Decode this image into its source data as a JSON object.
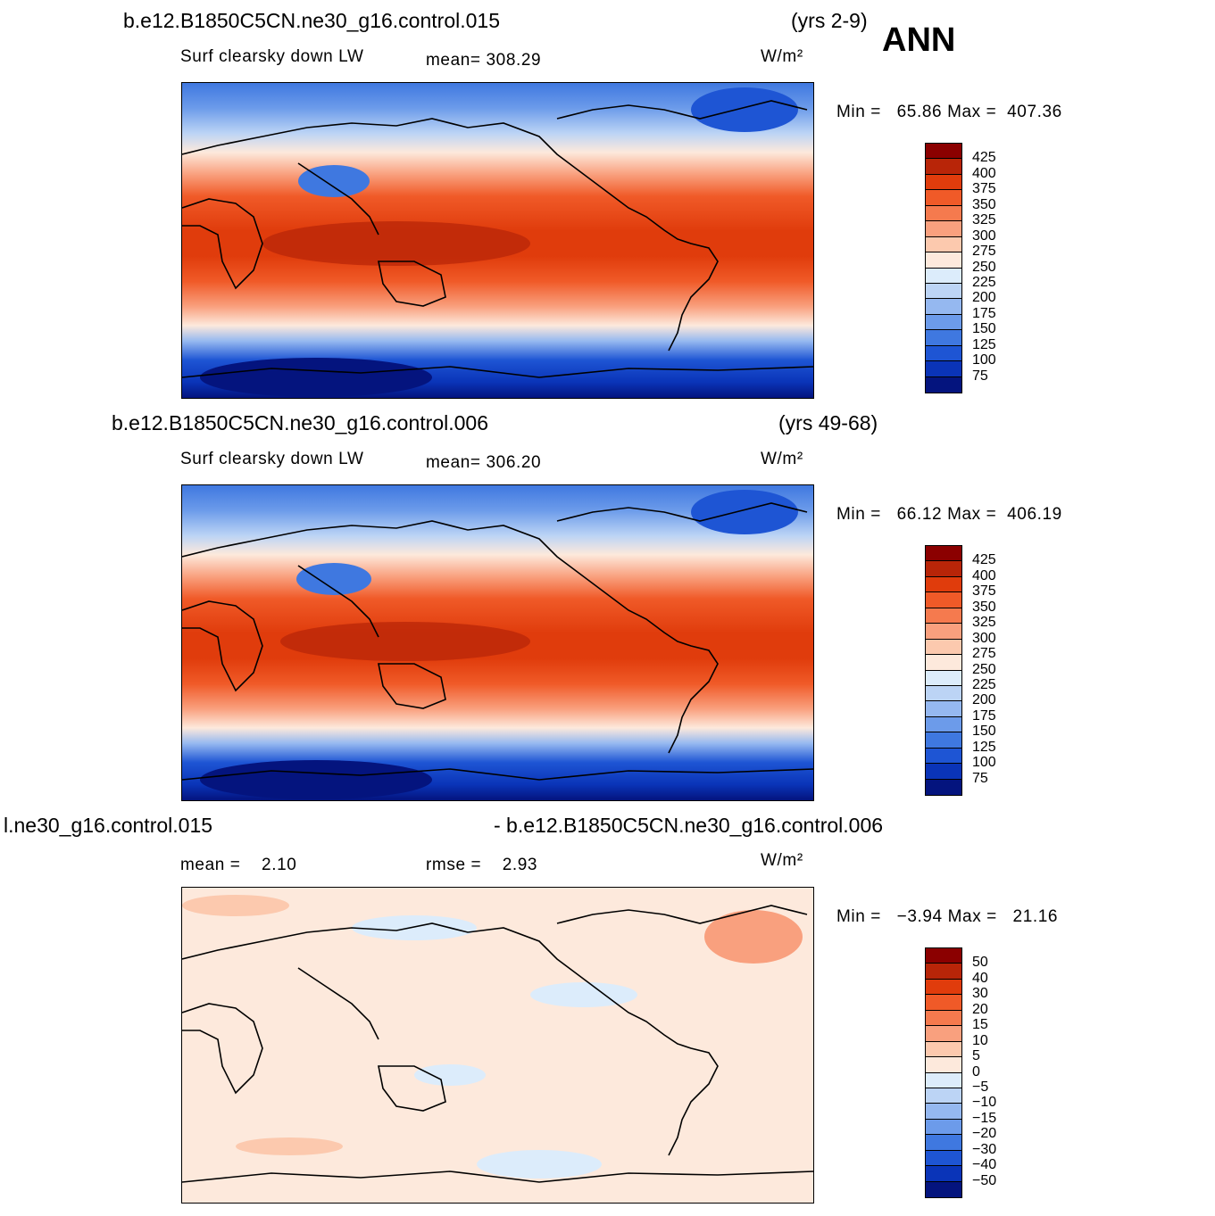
{
  "season": "ANN",
  "chart_data": [
    {
      "type": "heatmap",
      "title": "b.e12.B1850C5CN.ne30_g16.control.015",
      "years": "(yrs 2-9)",
      "variable": "Surf clearsky down LW",
      "stat_label": "mean=",
      "stat_value": "308.29",
      "units": "W/m²",
      "min_label": "Min =",
      "min": "65.86",
      "max_label": "Max =",
      "max": "407.36",
      "colorbar_levels": [
        "425",
        "400",
        "375",
        "350",
        "325",
        "300",
        "275",
        "250",
        "225",
        "200",
        "175",
        "150",
        "125",
        "100",
        "75"
      ],
      "colorbar_colors": [
        "#8b0000",
        "#b82508",
        "#e03c0c",
        "#f05a28",
        "#f57a4e",
        "#f9a07e",
        "#fcc9ae",
        "#fde9dc",
        "#dcecfb",
        "#bcd4f5",
        "#95b8f0",
        "#6c9bea",
        "#3f78e0",
        "#1e55d4",
        "#0a34b8",
        "#04147e"
      ]
    },
    {
      "type": "heatmap",
      "title": "b.e12.B1850C5CN.ne30_g16.control.006",
      "years": "(yrs 49-68)",
      "variable": "Surf clearsky down LW",
      "stat_label": "mean=",
      "stat_value": "306.20",
      "units": "W/m²",
      "min_label": "Min =",
      "min": "66.12",
      "max_label": "Max =",
      "max": "406.19",
      "colorbar_levels": [
        "425",
        "400",
        "375",
        "350",
        "325",
        "300",
        "275",
        "250",
        "225",
        "200",
        "175",
        "150",
        "125",
        "100",
        "75"
      ],
      "colorbar_colors": [
        "#8b0000",
        "#b82508",
        "#e03c0c",
        "#f05a28",
        "#f57a4e",
        "#f9a07e",
        "#fcc9ae",
        "#fde9dc",
        "#dcecfb",
        "#bcd4f5",
        "#95b8f0",
        "#6c9bea",
        "#3f78e0",
        "#1e55d4",
        "#0a34b8",
        "#04147e"
      ]
    },
    {
      "type": "heatmap",
      "title_left": "l.ne30_g16.control.015",
      "title_right": "- b.e12.B1850C5CN.ne30_g16.control.006",
      "mean_label": "mean =",
      "mean_value": "2.10",
      "rmse_label": "rmse =",
      "rmse_value": "2.93",
      "units": "W/m²",
      "min_label": "Min =",
      "min": "−3.94",
      "max_label": "Max =",
      "max": "21.16",
      "colorbar_levels": [
        "50",
        "40",
        "30",
        "20",
        "15",
        "10",
        "5",
        "0",
        "−5",
        "−10",
        "−15",
        "−20",
        "−30",
        "−40",
        "−50"
      ],
      "colorbar_colors": [
        "#8b0000",
        "#b82508",
        "#e03c0c",
        "#f05a28",
        "#f57a4e",
        "#f9a07e",
        "#fcc9ae",
        "#fde9dc",
        "#dcecfb",
        "#bcd4f5",
        "#95b8f0",
        "#6c9bea",
        "#3f78e0",
        "#1e55d4",
        "#0a34b8",
        "#04147e"
      ]
    }
  ]
}
